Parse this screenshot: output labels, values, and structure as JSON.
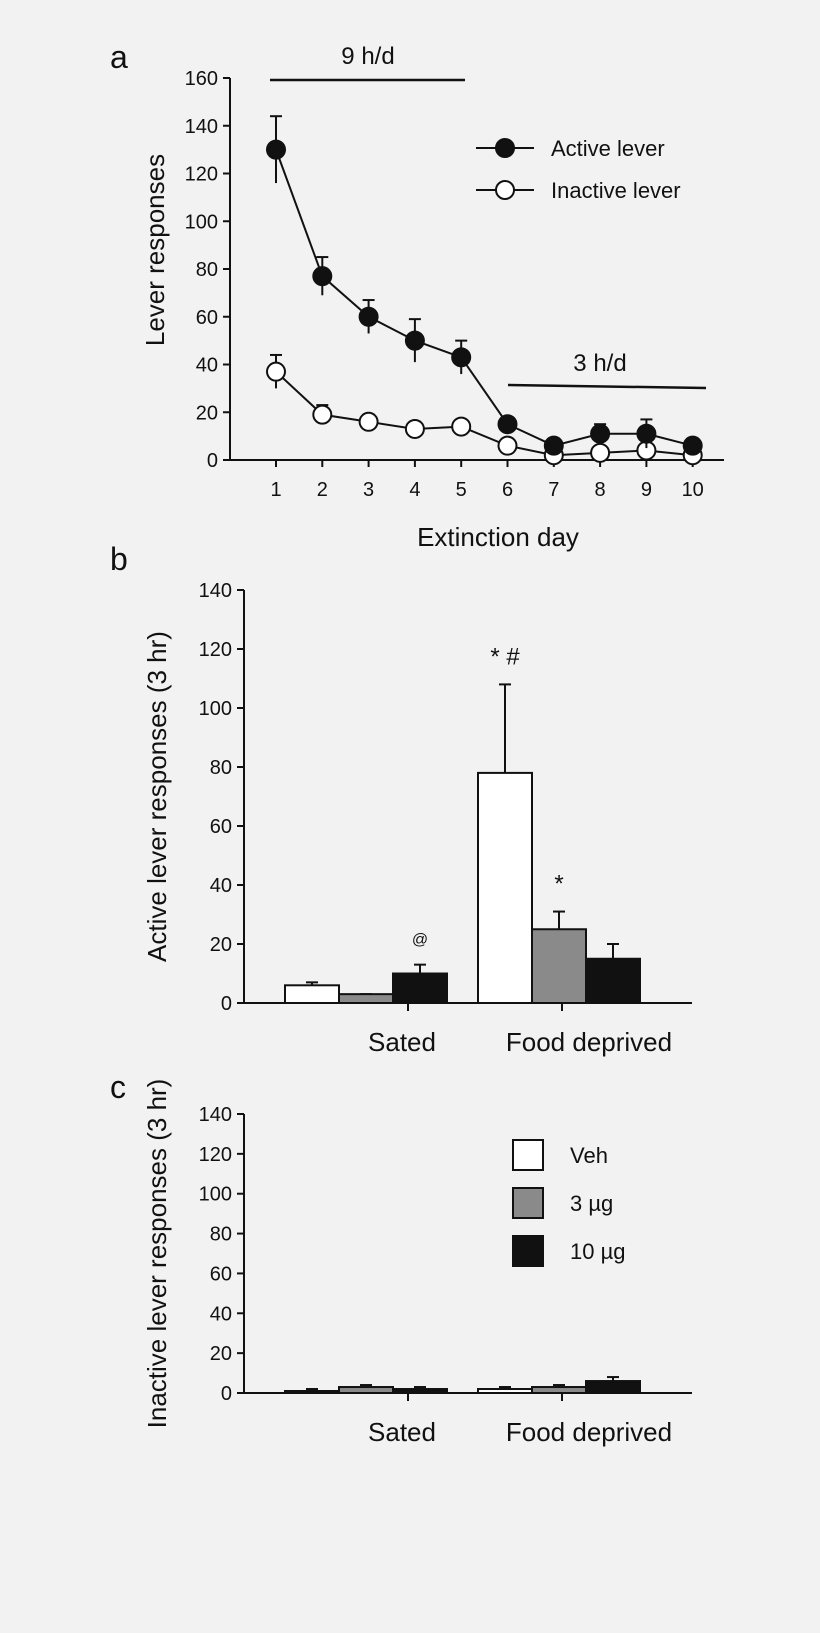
{
  "chart_data": [
    {
      "panel": "a",
      "type": "line",
      "xlabel": "Extinction day",
      "ylabel": "Lever responses",
      "x": [
        1,
        2,
        3,
        4,
        5,
        6,
        7,
        8,
        9,
        10
      ],
      "xticks": [
        "1",
        "2",
        "3",
        "4",
        "5",
        "6",
        "7",
        "8",
        "9",
        "10"
      ],
      "ylim": [
        0,
        160
      ],
      "yticks": [
        "0",
        "20",
        "40",
        "60",
        "80",
        "100",
        "120",
        "140",
        "160"
      ],
      "series": [
        {
          "name": "Active lever",
          "marker": "filled-circle",
          "values": [
            130,
            77,
            60,
            50,
            43,
            15,
            6,
            11,
            11,
            6
          ],
          "errors": [
            14,
            8,
            7,
            9,
            7,
            3,
            3,
            4,
            6,
            3
          ]
        },
        {
          "name": "Inactive lever",
          "marker": "open-circle",
          "values": [
            37,
            19,
            16,
            13,
            14,
            6,
            2,
            3,
            4,
            2
          ],
          "errors": [
            7,
            4,
            3,
            3,
            2,
            2,
            1,
            2,
            2,
            1
          ]
        }
      ],
      "annotations": [
        {
          "text": "9 h/d",
          "from_day": 1,
          "to_day": 5,
          "y": 159
        },
        {
          "text": "3 h/d",
          "from_day": 6,
          "to_day": 10,
          "y": 30
        }
      ]
    },
    {
      "panel": "b",
      "type": "bar",
      "ylabel": "Active lever responses (3 hr)",
      "ylim": [
        0,
        140
      ],
      "yticks": [
        "0",
        "20",
        "40",
        "60",
        "80",
        "100",
        "120",
        "140"
      ],
      "categories": [
        "Sated",
        "Food deprived"
      ],
      "series": [
        {
          "name": "Veh",
          "values": [
            6,
            78
          ],
          "errors": [
            1,
            30
          ]
        },
        {
          "name": "3 µg",
          "values": [
            3,
            25
          ],
          "errors": [
            0,
            6
          ]
        },
        {
          "name": "10 µg",
          "values": [
            10,
            15
          ],
          "errors": [
            3,
            5
          ]
        }
      ],
      "annotations": [
        {
          "text": "* #",
          "category": "Food deprived",
          "series": "Veh"
        },
        {
          "text": "*",
          "category": "Food deprived",
          "series": "3 µg"
        },
        {
          "text": "@",
          "category": "Sated",
          "series": "10 µg"
        }
      ]
    },
    {
      "panel": "c",
      "type": "bar",
      "ylabel": "Inactive lever responses (3 hr)",
      "ylim": [
        0,
        140
      ],
      "yticks": [
        "0",
        "20",
        "40",
        "60",
        "80",
        "100",
        "120",
        "140"
      ],
      "categories": [
        "Sated",
        "Food deprived"
      ],
      "series": [
        {
          "name": "Veh",
          "values": [
            1,
            2
          ],
          "errors": [
            1,
            1
          ]
        },
        {
          "name": "3 µg",
          "values": [
            3,
            3
          ],
          "errors": [
            1,
            1
          ]
        },
        {
          "name": "10 µg",
          "values": [
            2,
            6
          ],
          "errors": [
            1,
            2
          ]
        }
      ]
    }
  ],
  "colors": {
    "background": "#f2f2f2",
    "ink": "#111111",
    "veh": "#ffffff",
    "mid_dose": "#8a8a8a",
    "high_dose": "#111111"
  }
}
